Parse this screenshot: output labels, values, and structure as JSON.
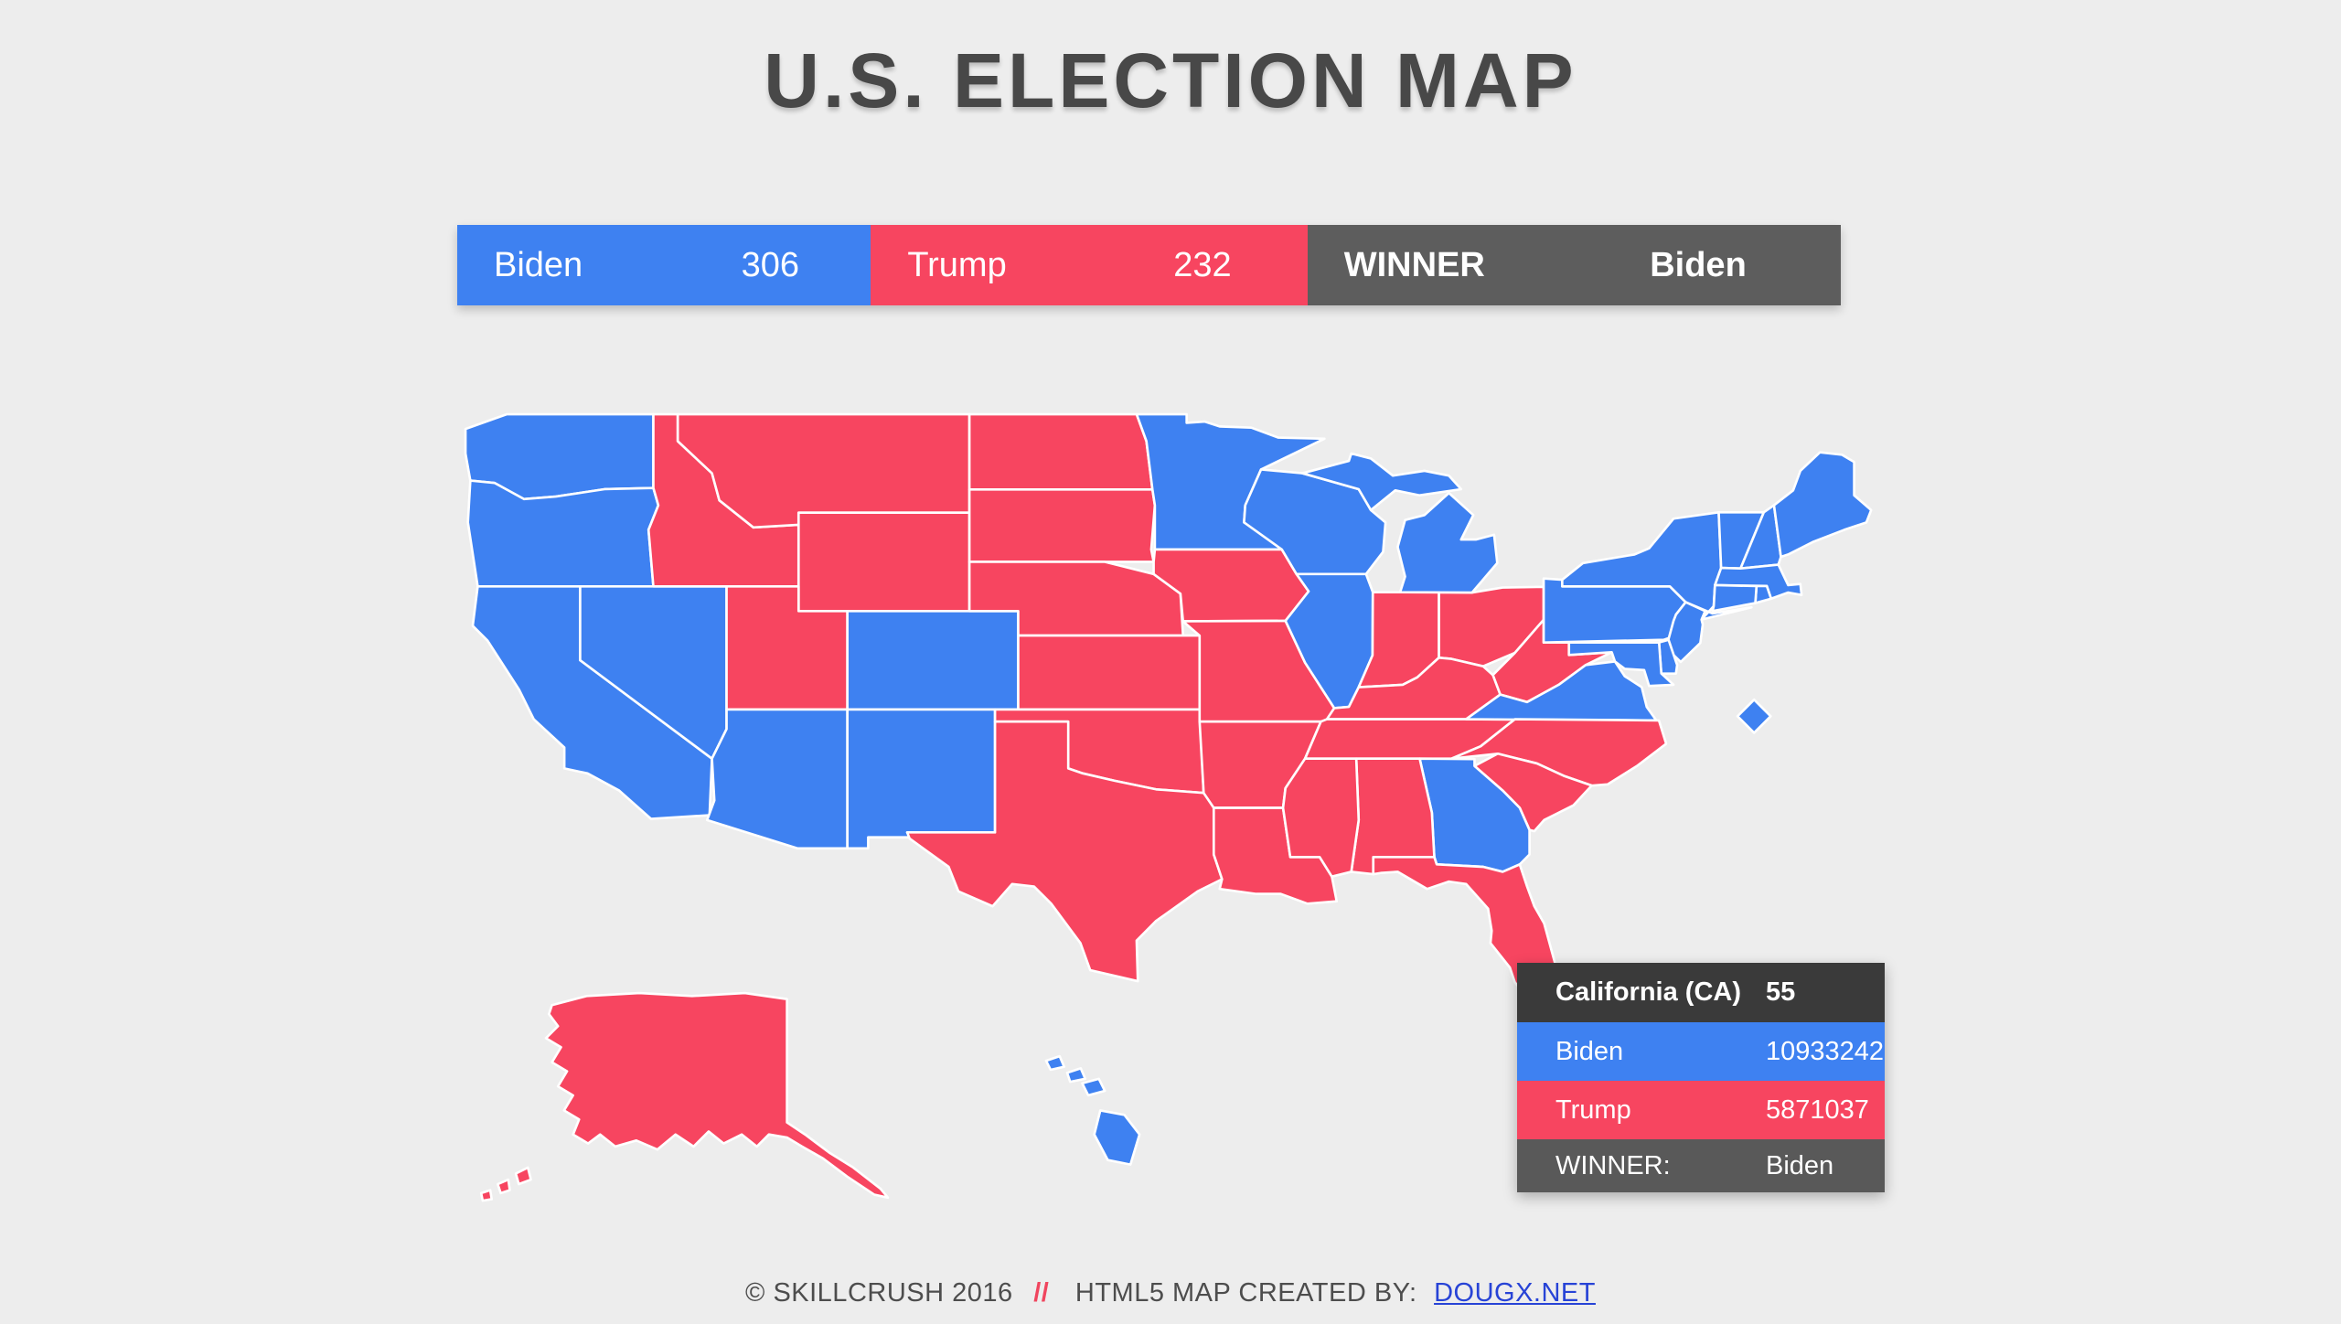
{
  "title": "U.S. ELECTION MAP",
  "scoreboard": {
    "biden": {
      "label": "Biden",
      "votes": "306"
    },
    "trump": {
      "label": "Trump",
      "votes": "232"
    },
    "winner": {
      "label": "WINNER",
      "value": "Biden"
    }
  },
  "tooltip": {
    "state_name": "California (CA)",
    "electoral_votes": "55",
    "biden_label": "Biden",
    "biden_value": "10933242",
    "trump_label": "Trump",
    "trump_value": "5871037",
    "winner_label": "WINNER:",
    "winner_value": "Biden"
  },
  "footer": {
    "copyright": "© SKILLCRUSH 2016",
    "divider": "//",
    "credit": "HTML5 MAP CREATED BY:",
    "link": "DOUGX.NET"
  },
  "colors": {
    "biden": "#3e81f1",
    "trump": "#f74560",
    "neutral": "#5d5d5d",
    "tooltipHeader": "#3a3a3a",
    "tooltipWinner": "#595959",
    "background": "#ededed"
  },
  "map": {
    "winners": {
      "WA": "biden",
      "OR": "biden",
      "CA": "biden",
      "NV": "biden",
      "AZ": "biden",
      "NM": "biden",
      "CO": "biden",
      "HI": "biden",
      "MN": "biden",
      "WI": "biden",
      "IL": "biden",
      "MI": "biden",
      "GA": "biden",
      "VA": "biden",
      "PA": "biden",
      "NY": "biden",
      "NJ": "biden",
      "VT": "biden",
      "NH": "biden",
      "ME": "biden",
      "MA": "biden",
      "RI": "biden",
      "CT": "biden",
      "DE": "biden",
      "MD": "biden",
      "DC": "biden",
      "ID": "trump",
      "MT": "trump",
      "WY": "trump",
      "UT": "trump",
      "ND": "trump",
      "SD": "trump",
      "NE": "trump",
      "KS": "trump",
      "OK": "trump",
      "TX": "trump",
      "IA": "trump",
      "MO": "trump",
      "AR": "trump",
      "LA": "trump",
      "MS": "trump",
      "AL": "trump",
      "TN": "trump",
      "KY": "trump",
      "IN": "trump",
      "OH": "trump",
      "WV": "trump",
      "NC": "trump",
      "SC": "trump",
      "FL": "trump",
      "AK": "trump"
    }
  }
}
